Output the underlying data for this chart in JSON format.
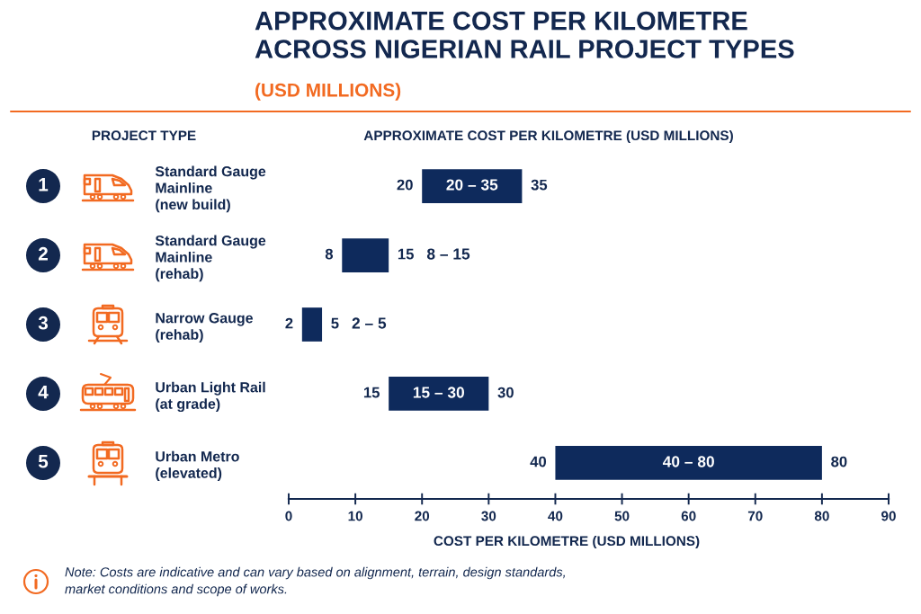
{
  "chart_data": {
    "type": "bar",
    "orientation": "horizontal",
    "title": "APPROXIMATE COST PER KILOMETRE\nACROSS NIGERIAN RAIL PROJECT TYPES",
    "subtitle": "(USD MILLIONS)",
    "ylabel": "PROJECT TYPE",
    "xlabel": "COST PER KILOMETRE (USD MILLIONS)",
    "categories": [
      "Standard Gauge\nMainline\n(new build)",
      "Standard Gauge\nMainline\n(rehab)",
      "Narrow Gauge\n(rehab)",
      "Urban Light Rail\n(at grade)",
      "Urban Metro\n(elevated)"
    ],
    "base": [
      20,
      8,
      2,
      15,
      40
    ],
    "values": [
      15,
      7,
      3,
      15,
      40
    ],
    "color": "#0e2a5c",
    "xlim": [
      0,
      90
    ],
    "xticks": [
      0,
      10,
      20,
      30,
      40,
      50,
      60,
      70,
      80,
      90
    ],
    "annotations": [
      "APPROXIMATE COST PER KILOMETRE (USD MILLIONS)",
      "1",
      "2",
      "3",
      "4",
      "5",
      "20 – 35",
      "8 – 15",
      "2 – 5",
      "15 – 30",
      "40 – 80",
      {
        "text": "20",
        "x": 20,
        "y": "Standard Gauge\nMainline\n(new build)"
      },
      {
        "text": "35",
        "x": 35,
        "y": "Standard Gauge\nMainline\n(new build)"
      },
      {
        "text": "8",
        "x": 8,
        "y": "Standard Gauge\nMainline\n(rehab)"
      },
      {
        "text": "15",
        "x": 15,
        "y": "Standard Gauge\nMainline\n(rehab)"
      },
      {
        "text": "2",
        "x": 2,
        "y": "Narrow Gauge\n(rehab)"
      },
      {
        "text": "5",
        "x": 5,
        "y": "Narrow Gauge\n(rehab)"
      },
      {
        "text": "15",
        "x": 15,
        "y": "Urban Light Rail\n(at grade)"
      },
      {
        "text": "30",
        "x": 30,
        "y": "Urban Light Rail\n(at grade)"
      },
      {
        "text": "40",
        "x": 40,
        "y": "Urban Metro\n(elevated)"
      },
      {
        "text": "80",
        "x": 80,
        "y": "Urban Metro\n(elevated)"
      },
      "Note: Costs are indicative and can vary based on alignment, terrain, design standards,\nmarket conditions and scope of works."
    ]
  }
}
